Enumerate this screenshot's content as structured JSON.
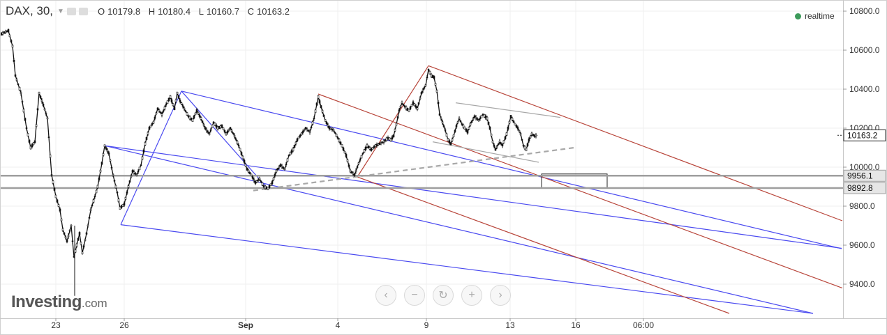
{
  "header": {
    "symbol": "DAX, 30,",
    "open_key": "O",
    "open": "10179.8",
    "high_key": "H",
    "high": "10180.4",
    "low_key": "L",
    "low": "10160.7",
    "close_key": "C",
    "close": "10163.2",
    "realtime": "realtime"
  },
  "logo": {
    "main": "Investing",
    "suffix": ".com"
  },
  "nav": {
    "left": "‹",
    "zoom_out": "−",
    "reset": "↻",
    "zoom_in": "+",
    "right": "›"
  },
  "colors": {
    "blue": "#4a4af0",
    "red": "#b8453a",
    "grey": "#a8a8a8",
    "price": "#111111"
  },
  "chart_data": {
    "type": "candlestick",
    "instrument": "DAX",
    "interval": "30",
    "x_tick_labels": [
      "23",
      "26",
      "Sep",
      "4",
      "9",
      "13",
      "16",
      "06:00"
    ],
    "y_ticks": [
      9400,
      9600,
      9800,
      10000,
      10200,
      10400,
      10600,
      10800
    ],
    "y_tick_labels": [
      "9400.0",
      "9600.0",
      "9800.0",
      "10000.0",
      "10200.0",
      "10400.0",
      "10600.0",
      "10800.0"
    ],
    "ylim": [
      9250,
      10870
    ],
    "last_price": 10163.2,
    "last_price_label": "10163.2",
    "horizontal_levels": [
      {
        "value": 9956.1,
        "label": "9956.1"
      },
      {
        "value": 9892.8,
        "label": "9892.8"
      }
    ],
    "price_path": [
      [
        0,
        10680
      ],
      [
        12,
        10700
      ],
      [
        18,
        10620
      ],
      [
        22,
        10470
      ],
      [
        30,
        10380
      ],
      [
        38,
        10200
      ],
      [
        44,
        10100
      ],
      [
        50,
        10130
      ],
      [
        56,
        10380
      ],
      [
        62,
        10320
      ],
      [
        68,
        10250
      ],
      [
        74,
        9960
      ],
      [
        80,
        9850
      ],
      [
        86,
        9780
      ],
      [
        90,
        9680
      ],
      [
        96,
        9620
      ],
      [
        102,
        9700
      ],
      [
        106,
        9540
      ],
      [
        110,
        9600
      ],
      [
        114,
        9660
      ],
      [
        118,
        9560
      ],
      [
        124,
        9660
      ],
      [
        130,
        9780
      ],
      [
        136,
        9850
      ],
      [
        140,
        9900
      ],
      [
        146,
        10020
      ],
      [
        150,
        10110
      ],
      [
        156,
        10070
      ],
      [
        162,
        9960
      ],
      [
        168,
        9870
      ],
      [
        172,
        9790
      ],
      [
        178,
        9810
      ],
      [
        184,
        9900
      ],
      [
        190,
        9980
      ],
      [
        196,
        9960
      ],
      [
        202,
        10010
      ],
      [
        208,
        10120
      ],
      [
        214,
        10200
      ],
      [
        220,
        10230
      ],
      [
        226,
        10300
      ],
      [
        232,
        10270
      ],
      [
        238,
        10320
      ],
      [
        244,
        10360
      ],
      [
        250,
        10300
      ],
      [
        254,
        10380
      ],
      [
        258,
        10340
      ],
      [
        264,
        10300
      ],
      [
        270,
        10260
      ],
      [
        276,
        10240
      ],
      [
        282,
        10290
      ],
      [
        288,
        10250
      ],
      [
        294,
        10200
      ],
      [
        300,
        10170
      ],
      [
        306,
        10230
      ],
      [
        312,
        10200
      ],
      [
        318,
        10210
      ],
      [
        324,
        10170
      ],
      [
        330,
        10200
      ],
      [
        336,
        10160
      ],
      [
        342,
        10110
      ],
      [
        348,
        10050
      ],
      [
        354,
        9990
      ],
      [
        360,
        9960
      ],
      [
        366,
        9920
      ],
      [
        372,
        9940
      ],
      [
        378,
        9900
      ],
      [
        384,
        9890
      ],
      [
        390,
        9920
      ],
      [
        396,
        9980
      ],
      [
        402,
        10010
      ],
      [
        408,
        9990
      ],
      [
        414,
        10060
      ],
      [
        420,
        10090
      ],
      [
        426,
        10140
      ],
      [
        432,
        10170
      ],
      [
        438,
        10200
      ],
      [
        444,
        10180
      ],
      [
        450,
        10250
      ],
      [
        456,
        10360
      ],
      [
        460,
        10310
      ],
      [
        466,
        10240
      ],
      [
        472,
        10200
      ],
      [
        478,
        10190
      ],
      [
        484,
        10150
      ],
      [
        490,
        10110
      ],
      [
        496,
        10060
      ],
      [
        502,
        9980
      ],
      [
        508,
        9960
      ],
      [
        514,
        10020
      ],
      [
        520,
        10070
      ],
      [
        526,
        10110
      ],
      [
        532,
        10090
      ],
      [
        538,
        10110
      ],
      [
        544,
        10120
      ],
      [
        550,
        10130
      ],
      [
        556,
        10150
      ],
      [
        560,
        10140
      ],
      [
        564,
        10160
      ],
      [
        568,
        10220
      ],
      [
        572,
        10290
      ],
      [
        576,
        10330
      ],
      [
        580,
        10310
      ],
      [
        586,
        10290
      ],
      [
        592,
        10330
      ],
      [
        598,
        10300
      ],
      [
        604,
        10380
      ],
      [
        610,
        10420
      ],
      [
        614,
        10500
      ],
      [
        618,
        10470
      ],
      [
        622,
        10460
      ],
      [
        626,
        10390
      ],
      [
        630,
        10270
      ],
      [
        634,
        10230
      ],
      [
        638,
        10190
      ],
      [
        642,
        10140
      ],
      [
        646,
        10120
      ],
      [
        650,
        10160
      ],
      [
        654,
        10210
      ],
      [
        658,
        10250
      ],
      [
        662,
        10220
      ],
      [
        666,
        10200
      ],
      [
        670,
        10180
      ],
      [
        674,
        10220
      ],
      [
        680,
        10260
      ],
      [
        686,
        10240
      ],
      [
        692,
        10270
      ],
      [
        698,
        10250
      ],
      [
        702,
        10200
      ],
      [
        706,
        10130
      ],
      [
        710,
        10090
      ],
      [
        716,
        10130
      ],
      [
        720,
        10110
      ],
      [
        726,
        10170
      ],
      [
        732,
        10260
      ],
      [
        738,
        10220
      ],
      [
        742,
        10200
      ],
      [
        746,
        10170
      ],
      [
        750,
        10110
      ],
      [
        754,
        10090
      ],
      [
        758,
        10140
      ],
      [
        762,
        10170
      ],
      [
        766,
        10160
      ],
      [
        770,
        10163.2
      ]
    ],
    "drawings": {
      "blue_pitchfork": {
        "pivots": [
          [
            173,
            9705
          ],
          [
            260,
            10390
          ],
          [
            385,
            9885
          ]
        ],
        "lines": [
          [
            [
              173,
              9705
            ],
            [
              260,
              10390
            ]
          ],
          [
            [
              260,
              10390
            ],
            [
              385,
              9885
            ]
          ],
          [
            [
              260,
              10390
            ],
            [
              1206,
              9582
            ]
          ],
          [
            [
              150,
              10110
            ],
            [
              1206,
              9584
            ]
          ],
          [
            [
              173,
              9705
            ],
            [
              1165,
              9250
            ]
          ],
          [
            [
              150,
              10110
            ],
            [
              1165,
              9250
            ]
          ]
        ]
      },
      "red_pitchfork": {
        "pivots": [
          [
            512,
            9950
          ],
          [
            614,
            10520
          ],
          [
            456,
            10375
          ]
        ],
        "lines": [
          [
            [
              512,
              9950
            ],
            [
              614,
              10520
            ]
          ],
          [
            [
              614,
              10520
            ],
            [
              1207,
              9725
            ]
          ],
          [
            [
              456,
              10375
            ],
            [
              1207,
              9380
            ]
          ],
          [
            [
              512,
              9950
            ],
            [
              1045,
              9250
            ]
          ]
        ]
      },
      "grey_trendlines": [
        {
          "from": [
            653,
            10330
          ],
          "to": [
            803,
            10255
          ],
          "style": "solid"
        },
        {
          "from": [
            620,
            10130
          ],
          "to": [
            772,
            10025
          ],
          "style": "solid"
        },
        {
          "from": [
            363,
            9880
          ],
          "to": [
            823,
            10100
          ],
          "style": "dashed"
        }
      ],
      "rectangle": {
        "x_range": [
          776,
          870
        ],
        "y_range": [
          9892.8,
          9965
        ]
      }
    }
  }
}
